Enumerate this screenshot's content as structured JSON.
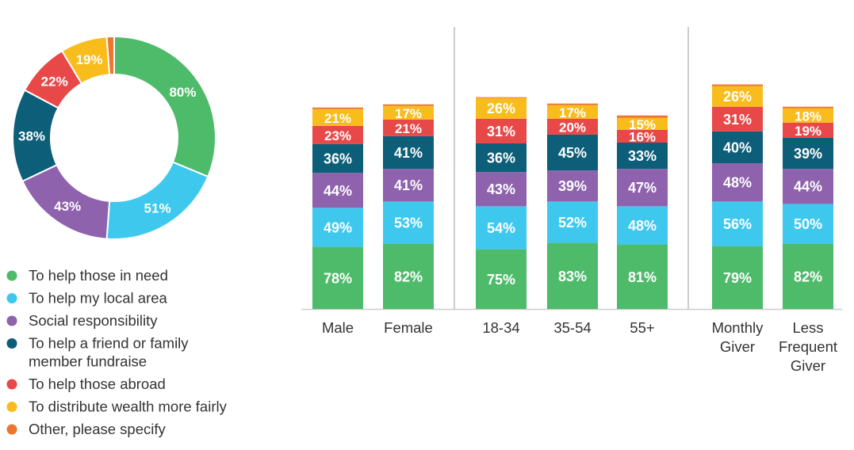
{
  "chart_data": [
    {
      "type": "donut",
      "categories": [
        "To help those in need",
        "To help my local area",
        "Social responsibility",
        "To help a friend or family member fundraise",
        "To help those abroad",
        "To distribute wealth more fairly",
        "Other, please specify"
      ],
      "values": [
        80,
        51,
        43,
        38,
        22,
        19,
        3
      ],
      "labels": [
        "80%",
        "51%",
        "43%",
        "38%",
        "22%",
        "19%",
        ""
      ]
    },
    {
      "type": "bar",
      "stacked": true,
      "categories": [
        {
          "lines": [
            "Male"
          ],
          "group": 0
        },
        {
          "lines": [
            "Female"
          ],
          "group": 0
        },
        {
          "lines": [
            "18-34"
          ],
          "group": 1
        },
        {
          "lines": [
            "35-54"
          ],
          "group": 1
        },
        {
          "lines": [
            "55+"
          ],
          "group": 1
        },
        {
          "lines": [
            "Monthly",
            "Giver"
          ],
          "group": 2
        },
        {
          "lines": [
            "Less",
            "Frequent",
            "Giver"
          ],
          "group": 2
        }
      ],
      "series": [
        {
          "name": "To help those in need",
          "values": [
            78,
            82,
            75,
            83,
            81,
            79,
            82
          ]
        },
        {
          "name": "To help my local area",
          "values": [
            49,
            53,
            54,
            52,
            48,
            56,
            50
          ]
        },
        {
          "name": "Social responsibility",
          "values": [
            44,
            41,
            43,
            39,
            47,
            48,
            44
          ]
        },
        {
          "name": "To help a friend or family member fundraise",
          "values": [
            36,
            41,
            36,
            45,
            33,
            40,
            39
          ]
        },
        {
          "name": "To help those abroad",
          "values": [
            23,
            21,
            31,
            20,
            16,
            31,
            19
          ]
        },
        {
          "name": "To distribute wealth more fairly",
          "values": [
            21,
            17,
            26,
            17,
            15,
            26,
            18
          ]
        },
        {
          "name": "Other, please specify",
          "values": [
            2,
            2,
            1,
            2,
            3,
            2,
            2
          ]
        }
      ]
    }
  ],
  "legend": {
    "items": [
      {
        "lines": [
          "To help those in need"
        ]
      },
      {
        "lines": [
          "To help my local area"
        ]
      },
      {
        "lines": [
          "Social responsibility"
        ]
      },
      {
        "lines": [
          "To help a friend or family",
          "member fundraise"
        ]
      },
      {
        "lines": [
          "To help those abroad"
        ]
      },
      {
        "lines": [
          "To distribute wealth more fairly"
        ]
      },
      {
        "lines": [
          "Other, please specify"
        ]
      }
    ]
  },
  "colors": [
    "#4ebb6a",
    "#3ec8ee",
    "#8e62ad",
    "#0d5e78",
    "#e84848",
    "#f8bc1c",
    "#ee7530"
  ]
}
